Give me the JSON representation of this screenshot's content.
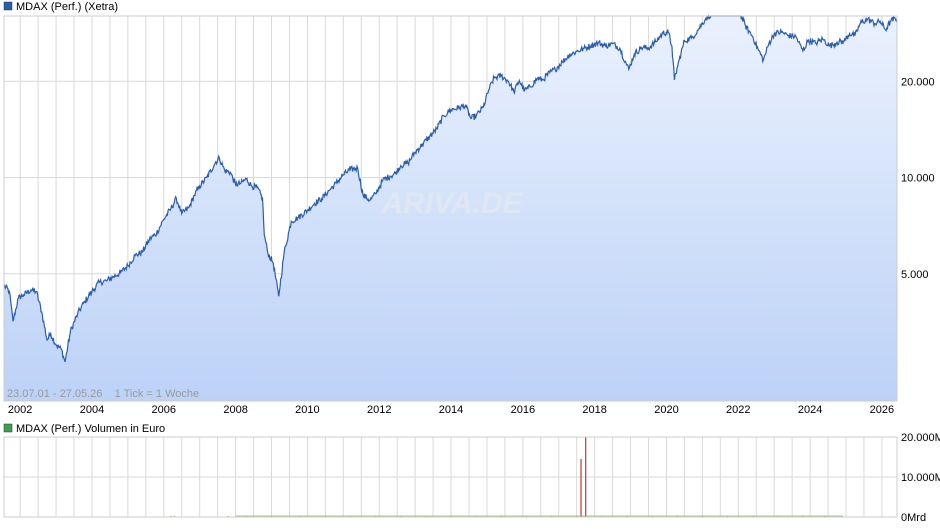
{
  "colors": {
    "price_line": "#2a5db0",
    "price_fill_top": "#eaf1fd",
    "price_fill_bottom": "#bcd2f7",
    "grid": "#d9d9d9",
    "volume_legend": "#3aa04a",
    "volume_bar_high": "#c0392b",
    "volume_bar_low": "#7aa05a",
    "text": "#000000",
    "info_text": "#9a9a9a",
    "watermark": "#dfe7f3"
  },
  "price_chart": {
    "legend_label": "MDAX (Perf.) (Xetra)",
    "info_text": "23.07.01 - 27.05.26    1 Tick = 1 Woche",
    "watermark": "ARIVA.DE",
    "y_axis": {
      "scale": "log",
      "ticks": [
        5000,
        10000,
        20000
      ],
      "tick_labels": [
        "5.000",
        "10.000",
        "20.000"
      ],
      "range": [
        2000,
        32000
      ]
    },
    "x_axis": {
      "range": [
        2001.55,
        2026.42
      ],
      "ticks": [
        2002,
        2004,
        2006,
        2008,
        2010,
        2012,
        2014,
        2016,
        2018,
        2020,
        2022,
        2024,
        2026
      ],
      "tick_labels": [
        "2002",
        "2004",
        "2006",
        "2008",
        "2010",
        "2012",
        "2014",
        "2016",
        "2018",
        "2020",
        "2022",
        "2024",
        "2026"
      ]
    }
  },
  "volume_chart": {
    "legend_label": "MDAX (Perf.) Volumen in Euro",
    "y_axis": {
      "ticks": [
        0,
        10000,
        20000
      ],
      "tick_labels": [
        "0Mrd",
        "10.000M",
        "20.000M"
      ],
      "range": [
        0,
        20000
      ]
    }
  },
  "chart_data": [
    {
      "type": "area",
      "title": "MDAX (Perf.) (Xetra)",
      "yscale": "log",
      "ylim": [
        2000,
        32000
      ],
      "xlim": [
        2001.55,
        2026.42
      ],
      "grid": true,
      "series": [
        {
          "name": "MDAX (Perf.) (Xetra)",
          "points": [
            [
              2001.55,
              4600
            ],
            [
              2001.7,
              4400
            ],
            [
              2001.8,
              3550
            ],
            [
              2001.95,
              4200
            ],
            [
              2002.1,
              4300
            ],
            [
              2002.3,
              4450
            ],
            [
              2002.45,
              4400
            ],
            [
              2002.6,
              3800
            ],
            [
              2002.75,
              3100
            ],
            [
              2002.85,
              3250
            ],
            [
              2003.0,
              3000
            ],
            [
              2003.15,
              2900
            ],
            [
              2003.25,
              2650
            ],
            [
              2003.4,
              3300
            ],
            [
              2003.6,
              3750
            ],
            [
              2003.8,
              4100
            ],
            [
              2004.0,
              4400
            ],
            [
              2004.2,
              4700
            ],
            [
              2004.4,
              4750
            ],
            [
              2004.6,
              4900
            ],
            [
              2004.8,
              5050
            ],
            [
              2005.0,
              5300
            ],
            [
              2005.2,
              5700
            ],
            [
              2005.4,
              5850
            ],
            [
              2005.6,
              6400
            ],
            [
              2005.8,
              6700
            ],
            [
              2006.0,
              7400
            ],
            [
              2006.2,
              8000
            ],
            [
              2006.35,
              8600
            ],
            [
              2006.5,
              7700
            ],
            [
              2006.7,
              8050
            ],
            [
              2006.85,
              8800
            ],
            [
              2007.0,
              9400
            ],
            [
              2007.2,
              10000
            ],
            [
              2007.45,
              11200
            ],
            [
              2007.55,
              11500
            ],
            [
              2007.7,
              10500
            ],
            [
              2007.85,
              10400
            ],
            [
              2008.0,
              9500
            ],
            [
              2008.15,
              9600
            ],
            [
              2008.3,
              9900
            ],
            [
              2008.45,
              9400
            ],
            [
              2008.6,
              9300
            ],
            [
              2008.75,
              8600
            ],
            [
              2008.8,
              6600
            ],
            [
              2008.9,
              5800
            ],
            [
              2009.05,
              5400
            ],
            [
              2009.2,
              4250
            ],
            [
              2009.35,
              5800
            ],
            [
              2009.55,
              7300
            ],
            [
              2009.75,
              7500
            ],
            [
              2010.0,
              7900
            ],
            [
              2010.2,
              8300
            ],
            [
              2010.4,
              8600
            ],
            [
              2010.6,
              9100
            ],
            [
              2010.8,
              9600
            ],
            [
              2011.0,
              10200
            ],
            [
              2011.2,
              10600
            ],
            [
              2011.4,
              10700
            ],
            [
              2011.55,
              8800
            ],
            [
              2011.75,
              8500
            ],
            [
              2011.9,
              8900
            ],
            [
              2012.1,
              9800
            ],
            [
              2012.3,
              10100
            ],
            [
              2012.45,
              10300
            ],
            [
              2012.6,
              10900
            ],
            [
              2012.8,
              11100
            ],
            [
              2013.0,
              12000
            ],
            [
              2013.2,
              12700
            ],
            [
              2013.4,
              13400
            ],
            [
              2013.6,
              14200
            ],
            [
              2013.8,
              15600
            ],
            [
              2014.0,
              16300
            ],
            [
              2014.2,
              16500
            ],
            [
              2014.4,
              16800
            ],
            [
              2014.55,
              15300
            ],
            [
              2014.7,
              15600
            ],
            [
              2014.9,
              16600
            ],
            [
              2015.05,
              18800
            ],
            [
              2015.2,
              20500
            ],
            [
              2015.4,
              20800
            ],
            [
              2015.6,
              20000
            ],
            [
              2015.75,
              18500
            ],
            [
              2015.9,
              20100
            ],
            [
              2016.05,
              18700
            ],
            [
              2016.2,
              19200
            ],
            [
              2016.4,
              20400
            ],
            [
              2016.55,
              20200
            ],
            [
              2016.75,
              21300
            ],
            [
              2016.9,
              21800
            ],
            [
              2017.1,
              23000
            ],
            [
              2017.3,
              24200
            ],
            [
              2017.5,
              24800
            ],
            [
              2017.7,
              25300
            ],
            [
              2017.9,
              25900
            ],
            [
              2018.1,
              26400
            ],
            [
              2018.3,
              25800
            ],
            [
              2018.5,
              26200
            ],
            [
              2018.7,
              25400
            ],
            [
              2018.85,
              23100
            ],
            [
              2018.95,
              21800
            ],
            [
              2019.1,
              24300
            ],
            [
              2019.3,
              25500
            ],
            [
              2019.5,
              25400
            ],
            [
              2019.7,
              26600
            ],
            [
              2019.9,
              28300
            ],
            [
              2020.05,
              28500
            ],
            [
              2020.15,
              25800
            ],
            [
              2020.22,
              20200
            ],
            [
              2020.35,
              23200
            ],
            [
              2020.5,
              26800
            ],
            [
              2020.7,
              27300
            ],
            [
              2020.9,
              29200
            ],
            [
              2021.1,
              31500
            ],
            [
              2021.3,
              32800
            ],
            [
              2021.5,
              34200
            ],
            [
              2021.6,
              35600
            ],
            [
              2021.75,
              34200
            ],
            [
              2021.9,
              34600
            ],
            [
              2022.05,
              32600
            ],
            [
              2022.2,
              29800
            ],
            [
              2022.4,
              27600
            ],
            [
              2022.55,
              25200
            ],
            [
              2022.7,
              23300
            ],
            [
              2022.85,
              26200
            ],
            [
              2023.0,
              28200
            ],
            [
              2023.2,
              28500
            ],
            [
              2023.4,
              27800
            ],
            [
              2023.6,
              27600
            ],
            [
              2023.8,
              24900
            ],
            [
              2023.95,
              26900
            ],
            [
              2024.15,
              26300
            ],
            [
              2024.35,
              27100
            ],
            [
              2024.55,
              25800
            ],
            [
              2024.75,
              26500
            ],
            [
              2024.95,
              26700
            ],
            [
              2025.1,
              28200
            ],
            [
              2025.25,
              27800
            ],
            [
              2025.4,
              30400
            ],
            [
              2025.6,
              31300
            ],
            [
              2025.8,
              30300
            ],
            [
              2025.95,
              30800
            ],
            [
              2026.1,
              29000
            ],
            [
              2026.25,
              30900
            ],
            [
              2026.42,
              31500
            ]
          ]
        }
      ]
    },
    {
      "type": "bar",
      "title": "MDAX (Perf.) Volumen in Euro",
      "ylim": [
        0,
        20000
      ],
      "xlim": [
        2001.55,
        2026.42
      ],
      "grid": true,
      "series": [
        {
          "name": "MDAX (Perf.) Volumen in Euro",
          "points": [
            [
              2006.2,
              40
            ],
            [
              2006.3,
              30
            ],
            [
              2007.8,
              60
            ],
            [
              2008.3,
              70
            ],
            [
              2009.0,
              60
            ],
            [
              2009.8,
              50
            ],
            [
              2010.5,
              50
            ],
            [
              2011.2,
              60
            ],
            [
              2011.9,
              55
            ],
            [
              2012.6,
              55
            ],
            [
              2013.3,
              55
            ],
            [
              2014.0,
              60
            ],
            [
              2014.7,
              55
            ],
            [
              2015.4,
              65
            ],
            [
              2016.1,
              60
            ],
            [
              2016.8,
              55
            ],
            [
              2017.5,
              60
            ],
            [
              2017.62,
              14500
            ],
            [
              2017.75,
              20000
            ],
            [
              2018.2,
              60
            ],
            [
              2018.9,
              55
            ],
            [
              2019.6,
              60
            ],
            [
              2020.3,
              70
            ],
            [
              2021.0,
              60
            ],
            [
              2021.7,
              55
            ],
            [
              2022.4,
              60
            ],
            [
              2023.1,
              55
            ],
            [
              2023.8,
              60
            ],
            [
              2024.4,
              55
            ],
            [
              2024.9,
              60
            ]
          ]
        }
      ]
    }
  ]
}
